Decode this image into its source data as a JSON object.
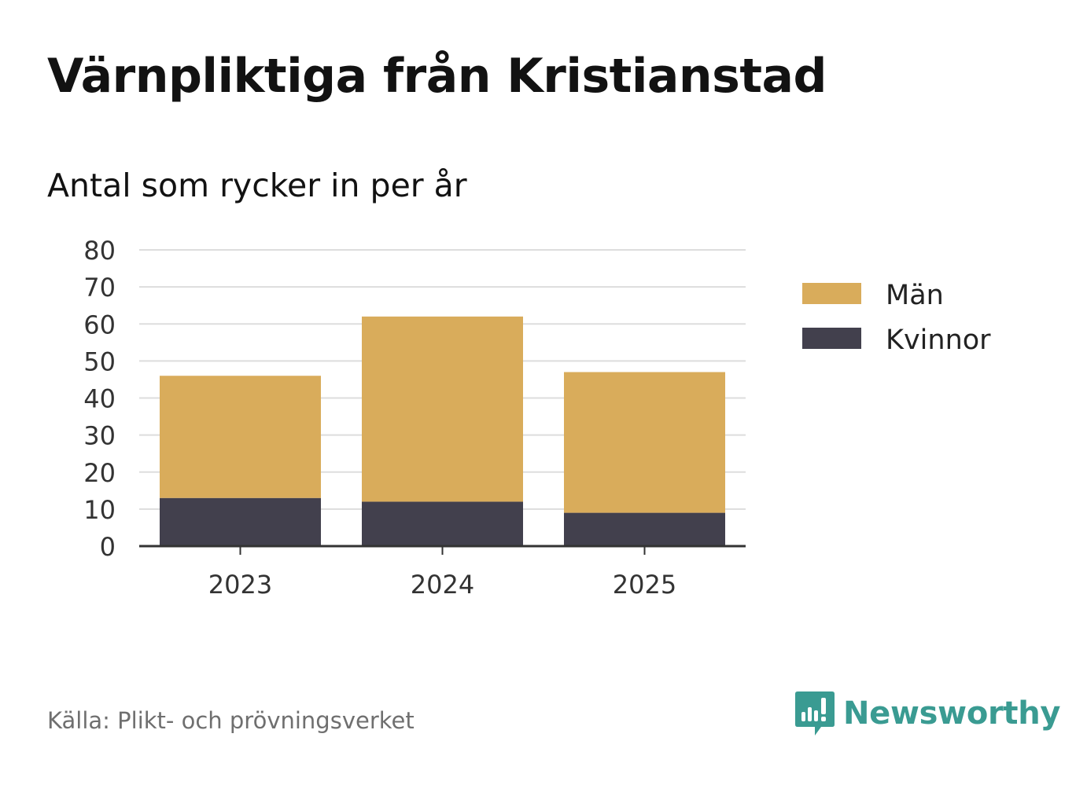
{
  "header": {
    "title": "Värnpliktiga från Kristianstad",
    "subtitle": "Antal som rycker in per år"
  },
  "chart_data": {
    "type": "bar",
    "stacked": true,
    "title": "Värnpliktiga från Kristianstad",
    "subtitle": "Antal som rycker in per år",
    "xlabel": "",
    "ylabel": "",
    "categories": [
      "2023",
      "2024",
      "2025"
    ],
    "series": [
      {
        "name": "Kvinnor",
        "color": "#42404d",
        "values": [
          13,
          12,
          9
        ]
      },
      {
        "name": "Män",
        "color": "#d9ac5b",
        "values": [
          33,
          50,
          38
        ]
      }
    ],
    "ylim": [
      0,
      80
    ],
    "yticks": [
      0,
      10,
      20,
      30,
      40,
      50,
      60,
      70,
      80
    ],
    "grid": true,
    "legend_position": "right",
    "legend_order": [
      "Män",
      "Kvinnor"
    ]
  },
  "footer": {
    "source": "Källa: Plikt- och prövningsverket",
    "brand": "Newsworthy",
    "brand_color": "#3a9b92"
  },
  "icons": {
    "brand_logo": "newsworthy-logo-icon"
  }
}
